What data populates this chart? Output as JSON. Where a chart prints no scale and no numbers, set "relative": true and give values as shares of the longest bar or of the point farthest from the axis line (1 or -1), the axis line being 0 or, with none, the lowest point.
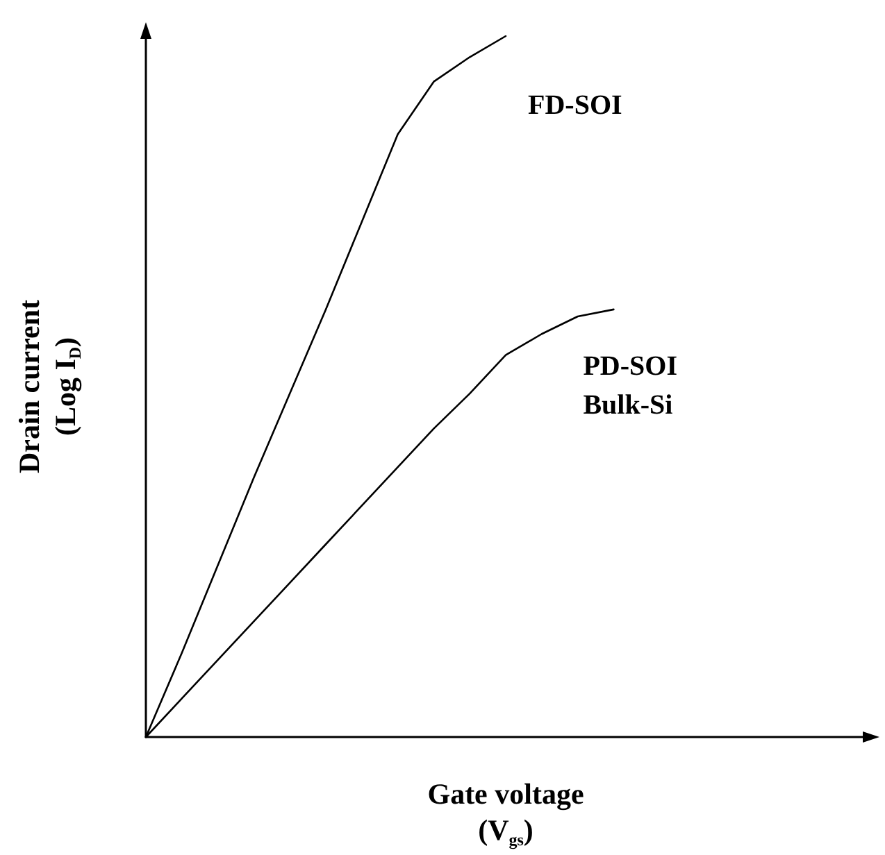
{
  "chart_data": {
    "type": "line",
    "relative": true,
    "xlabel": "Gate voltage\n(V$_{gs}$)",
    "ylabel": "Drain current\n(Log I$_{D}$)",
    "categories": [
      null,
      null,
      null,
      null,
      null,
      null,
      null,
      null,
      null,
      null,
      null,
      null,
      null,
      null,
      null,
      null,
      null,
      null,
      null,
      null,
      null
    ],
    "series": [
      {
        "name": "FD-SOI",
        "color": "#000000",
        "values": [
          0,
          0.12,
          0.245,
          0.37,
          0.49,
          0.61,
          0.735,
          0.86,
          0.935,
          0.97,
          1,
          null,
          null,
          null,
          null,
          null,
          null,
          null,
          null,
          null,
          null
        ]
      },
      {
        "name": "PD-SOI\nBulk-Si",
        "color": "#000000",
        "values": [
          0,
          0.055,
          0.11,
          0.165,
          0.22,
          0.275,
          0.33,
          0.385,
          0.44,
          0.49,
          0.545,
          0.575,
          0.6,
          0.61,
          null,
          null,
          null,
          null,
          null,
          null,
          null
        ]
      }
    ],
    "marker": "none",
    "line_style": "solid",
    "legend": false,
    "grid": false
  }
}
